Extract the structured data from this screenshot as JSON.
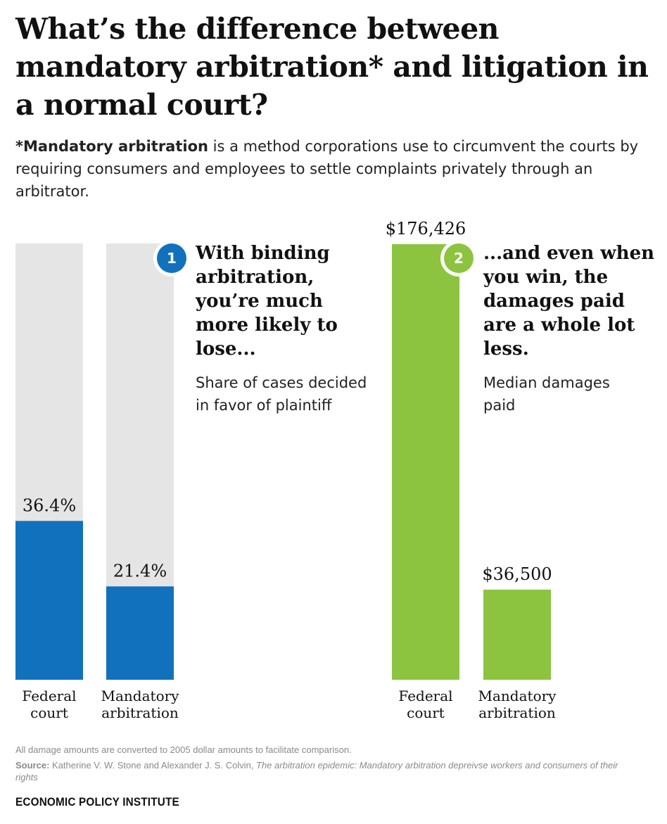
{
  "title": "What’s the difference between mandatory arbitration* and litigation in a normal court?",
  "subtitle": {
    "bold": "*Mandatory arbitration",
    "rest": " is a method corporations use to circumvent the courts by requiring consumers and employees to settle complaints privately through an arbitrator."
  },
  "chart_data": [
    {
      "type": "bar",
      "badge": "1",
      "heading": "With binding arbitration, you’re much more likely to lose...",
      "ylabel": "Share of cases decided in favor of plaintiff",
      "categories": [
        "Federal court",
        "Mandatory arbitration"
      ],
      "values": [
        36.4,
        21.4
      ],
      "labels": [
        "36.4%",
        "21.4%"
      ],
      "ylim": [
        0,
        100
      ],
      "color": "#1271bd",
      "track_color": "#e5e5e5"
    },
    {
      "type": "bar",
      "badge": "2",
      "heading": "...and even when you win, the damages paid are a whole lot less.",
      "ylabel": "Median damages paid",
      "categories": [
        "Federal court",
        "Mandatory arbitration"
      ],
      "values": [
        176426,
        36500
      ],
      "labels": [
        "$176,426",
        "$36,500"
      ],
      "color": "#8cc43f"
    }
  ],
  "footer": {
    "note": "All damage amounts are converted to 2005 dollar amounts to facilitate comparison.",
    "source_label": "Source:",
    "source_authors": " Katherine V. W. Stone and Alexander J. S. Colvin, ",
    "source_title": "The arbitration epidemic: Mandatory arbitration depreivse workers and consumers of their rights",
    "org": "ECONOMIC POLICY INSTITUTE"
  }
}
